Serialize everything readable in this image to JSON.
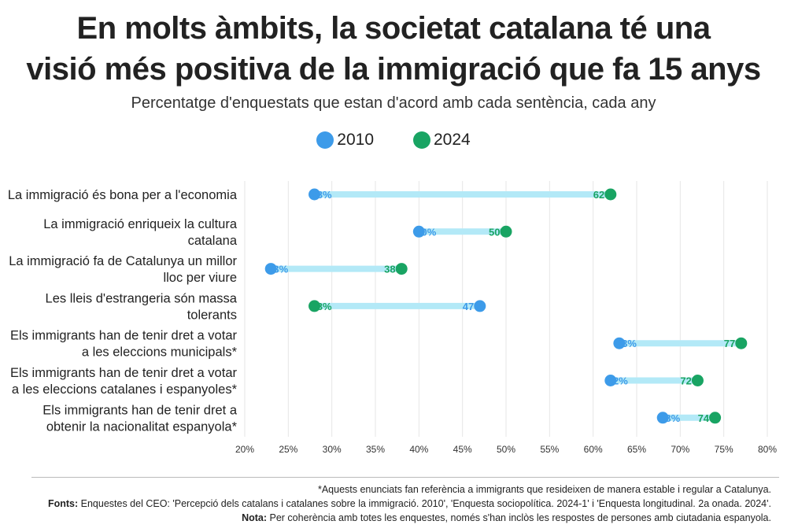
{
  "title_line1": "En molts àmbits, la societat catalana té una",
  "title_line2": "visió més positiva de la immigració que fa 15 anys",
  "subtitle": "Percentatge d'enquestats que estan d'acord amb cada sentència, cada any",
  "legend": [
    {
      "label": "2010",
      "color": "#3d9be9"
    },
    {
      "label": "2024",
      "color": "#19a463"
    }
  ],
  "chart_data": {
    "type": "dumbbell",
    "xlim": [
      20,
      80
    ],
    "xticks": [
      "20%",
      "25%",
      "30%",
      "35%",
      "40%",
      "45%",
      "50%",
      "55%",
      "60%",
      "65%",
      "70%",
      "75%",
      "80%"
    ],
    "grid": true,
    "series": [
      {
        "name": "2010",
        "color": "#3d9be9"
      },
      {
        "name": "2024",
        "color": "#19a463"
      }
    ],
    "connector_color": "#b3e9f7",
    "rows": [
      {
        "label": [
          "La immigració és bona per a l'economia"
        ],
        "v2010": 28,
        "v2024": 62
      },
      {
        "label": [
          "La immigració enriqueix la cultura",
          "catalana"
        ],
        "v2010": 40,
        "v2024": 50
      },
      {
        "label": [
          "La immigració fa de Catalunya un millor",
          "lloc per viure"
        ],
        "v2010": 23,
        "v2024": 38
      },
      {
        "label": [
          "Les lleis d'estrangeria són massa",
          "tolerants"
        ],
        "v2010": 47,
        "v2024": 28
      },
      {
        "label": [
          "Els immigrants han de tenir dret a votar",
          "a les eleccions municipals*"
        ],
        "v2010": 63,
        "v2024": 77
      },
      {
        "label": [
          "Els immigrants han de tenir dret a votar",
          "a les eleccions catalanes i espanyoles*"
        ],
        "v2010": 62,
        "v2024": 72
      },
      {
        "label": [
          "Els immigrants han de tenir dret a",
          "obtenir la nacionalitat espanyola*"
        ],
        "v2010": 68,
        "v2024": 74
      }
    ]
  },
  "footer": {
    "note_star": "*Aquests enunciats fan referència a immigrants que resideixen de manera estable i regular a Catalunya.",
    "sources_label": "Fonts:",
    "sources_text": " Enquestes del CEO: 'Percepció dels catalans i catalanes sobre la immigració. 2010', 'Enquesta sociopolítica. 2024-1' i 'Enquesta longitudinal. 2a onada. 2024'.",
    "nota_label": "Nota:",
    "nota_text": " Per coherència amb totes les enquestes, només s'han inclòs les respostes de persones amb ciutadania espanyola."
  }
}
